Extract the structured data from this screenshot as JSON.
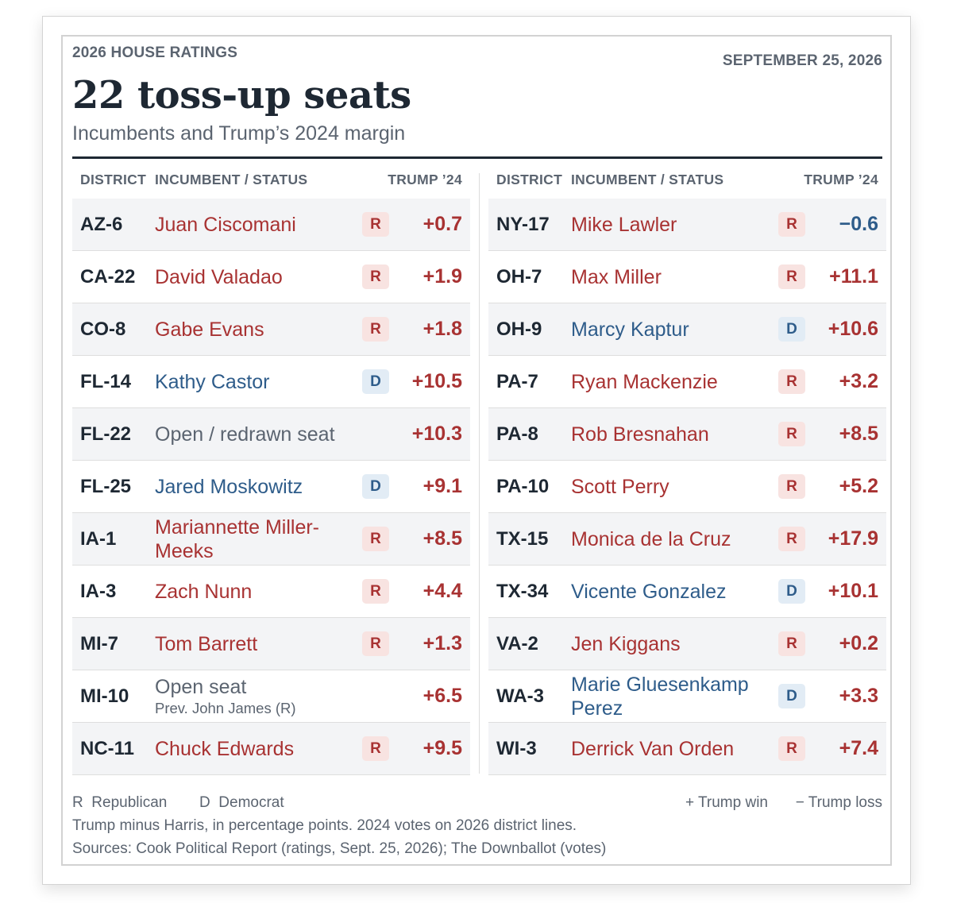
{
  "header": {
    "kicker": "2026 HOUSE RATINGS",
    "date": "SEPTEMBER 25, 2026",
    "title": "22 toss-up seats",
    "subtitle": "Incumbents and Trump’s 2024 margin"
  },
  "columns": {
    "district": "DISTRICT",
    "incumbent": "INCUMBENT / STATUS",
    "trump": "TRUMP ’24"
  },
  "colors": {
    "republican": "#a83232",
    "democrat": "#2e5c8a",
    "open": "#5b6470",
    "badge_r_bg": "#f8e3e1",
    "badge_d_bg": "#e2ecf5"
  },
  "left_rows": [
    {
      "district": "AZ-6",
      "name": "Juan Ciscomani",
      "party": "R",
      "margin": "+0.7"
    },
    {
      "district": "CA-22",
      "name": "David Valadao",
      "party": "R",
      "margin": "+1.9"
    },
    {
      "district": "CO-8",
      "name": "Gabe Evans",
      "party": "R",
      "margin": "+1.8"
    },
    {
      "district": "FL-14",
      "name": "Kathy Castor",
      "party": "D",
      "margin": "+10.5"
    },
    {
      "district": "FL-22",
      "name": "Open / redrawn seat",
      "party": "",
      "margin": "+10.3"
    },
    {
      "district": "FL-25",
      "name": "Jared Moskowitz",
      "party": "D",
      "margin": "+9.1"
    },
    {
      "district": "IA-1",
      "name": "Mariannette Miller-Meeks",
      "party": "R",
      "margin": "+8.5"
    },
    {
      "district": "IA-3",
      "name": "Zach Nunn",
      "party": "R",
      "margin": "+4.4"
    },
    {
      "district": "MI-7",
      "name": "Tom Barrett",
      "party": "R",
      "margin": "+1.3"
    },
    {
      "district": "MI-10",
      "name": "Open seat",
      "note": "Prev. John James (R)",
      "party": "",
      "margin": "+6.5"
    },
    {
      "district": "NC-11",
      "name": "Chuck Edwards",
      "party": "R",
      "margin": "+9.5"
    }
  ],
  "right_rows": [
    {
      "district": "NY-17",
      "name": "Mike Lawler",
      "party": "R",
      "margin": "−0.6"
    },
    {
      "district": "OH-7",
      "name": "Max Miller",
      "party": "R",
      "margin": "+11.1"
    },
    {
      "district": "OH-9",
      "name": "Marcy Kaptur",
      "party": "D",
      "margin": "+10.6"
    },
    {
      "district": "PA-7",
      "name": "Ryan Mackenzie",
      "party": "R",
      "margin": "+3.2"
    },
    {
      "district": "PA-8",
      "name": "Rob Bresnahan",
      "party": "R",
      "margin": "+8.5"
    },
    {
      "district": "PA-10",
      "name": "Scott Perry",
      "party": "R",
      "margin": "+5.2"
    },
    {
      "district": "TX-15",
      "name": "Monica de la Cruz",
      "party": "R",
      "margin": "+17.9"
    },
    {
      "district": "TX-34",
      "name": "Vicente Gonzalez",
      "party": "D",
      "margin": "+10.1"
    },
    {
      "district": "VA-2",
      "name": "Jen Kiggans",
      "party": "R",
      "margin": "+0.2"
    },
    {
      "district": "WA-3",
      "name": "Marie Gluesenkamp Perez",
      "party": "D",
      "margin": "+3.3"
    },
    {
      "district": "WI-3",
      "name": "Derrick Van Orden",
      "party": "R",
      "margin": "+7.4"
    }
  ],
  "footer": {
    "legend_r": "R  Republican",
    "legend_d": "D  Democrat",
    "legend_win": "+ Trump win",
    "legend_loss": "− Trump loss",
    "note": "Trump minus Harris, in percentage points. 2024 votes on 2026 district lines.",
    "sources": "Sources: Cook Political Report (ratings, Sept. 25, 2026); The Downballot (votes)"
  }
}
